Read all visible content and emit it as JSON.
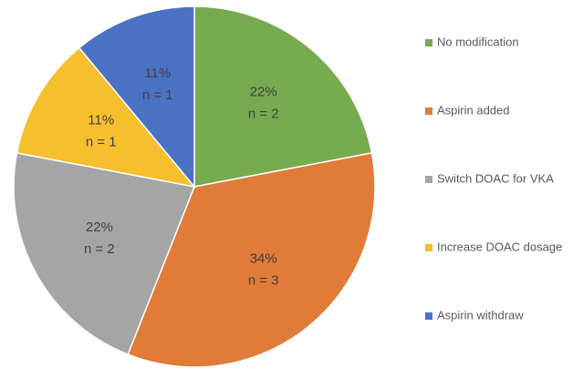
{
  "chart_data": {
    "type": "pie",
    "categories": [
      "No modification",
      "Aspirin added",
      "Switch DOAC for VKA",
      "Increase DOAC dosage",
      "Aspirin withdraw"
    ],
    "values": [
      22,
      34,
      22,
      11,
      11
    ],
    "value_labels": [
      "22%",
      "34%",
      "22%",
      "11%",
      "11%"
    ],
    "count_labels": [
      "n = 2",
      "n = 3",
      "n = 2",
      "n = 1",
      "n = 1"
    ],
    "colors": [
      "#77ab4f",
      "#e07b39",
      "#a5a5a5",
      "#f5bf2e",
      "#4a72c4"
    ],
    "legend": "right"
  }
}
